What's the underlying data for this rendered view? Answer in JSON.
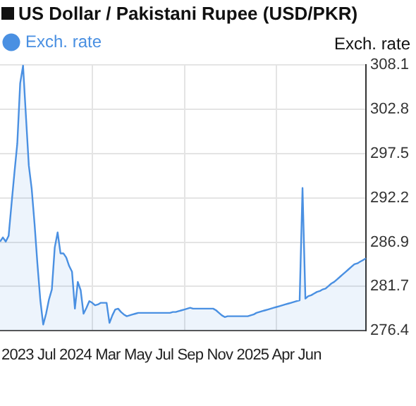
{
  "chart_data": {
    "type": "area",
    "title": "US Dollar / Pakistani Rupee (USD/PKR)",
    "ylabel": "Exch. rate",
    "categories": [
      null,
      null,
      null,
      null,
      null,
      null,
      null,
      null,
      null,
      null,
      null,
      null,
      null,
      null,
      null,
      null,
      null,
      null,
      null,
      null,
      null,
      null,
      null,
      null,
      null,
      null,
      null,
      null,
      null,
      null,
      null,
      null,
      null,
      null,
      null,
      null,
      null,
      null,
      null,
      null,
      null,
      null,
      null,
      null,
      null,
      null,
      null,
      null,
      null,
      null,
      null,
      null,
      null,
      null,
      null,
      null,
      null,
      null,
      null,
      null,
      null,
      null,
      null,
      null,
      null,
      null,
      null,
      null,
      null,
      null,
      null,
      null,
      null,
      null,
      null,
      null,
      null,
      null,
      null,
      null,
      null,
      null,
      null,
      null,
      null,
      null,
      null,
      null,
      null,
      null,
      null,
      null,
      null,
      null,
      null,
      null,
      null,
      null,
      null,
      null,
      null,
      null,
      null,
      null,
      null,
      null,
      null,
      null,
      null,
      null,
      null,
      null,
      null,
      null,
      null,
      null,
      null,
      null,
      null,
      null,
      null,
      null,
      null,
      null,
      null,
      null,
      null,
      null
    ],
    "series": [
      {
        "name": "Exch. rate",
        "color": "#4a90e2",
        "values": [
          287.0,
          287.5,
          287.0,
          287.7,
          291.5,
          295.2,
          298.7,
          305.9,
          308.0,
          302.0,
          296.1,
          293.3,
          289.1,
          284.3,
          280.0,
          277.1,
          278.4,
          280.1,
          281.3,
          286.3,
          288.1,
          285.6,
          285.6,
          285.1,
          284.1,
          283.4,
          279.0,
          282.2,
          281.2,
          278.4,
          279.1,
          279.9,
          279.7,
          279.4,
          279.5,
          279.7,
          279.7,
          279.7,
          277.3,
          278.2,
          278.9,
          279.0,
          278.6,
          278.3,
          278.1,
          278.2,
          278.3,
          278.4,
          278.5,
          278.5,
          278.5,
          278.5,
          278.5,
          278.5,
          278.5,
          278.5,
          278.5,
          278.5,
          278.5,
          278.5,
          278.6,
          278.6,
          278.7,
          278.8,
          278.9,
          279.0,
          279.1,
          279.0,
          279.0,
          279.0,
          279.0,
          279.0,
          279.0,
          279.0,
          279.0,
          278.8,
          278.5,
          278.2,
          278.0,
          278.1,
          278.1,
          278.1,
          278.1,
          278.1,
          278.1,
          278.1,
          278.1,
          278.2,
          278.3,
          278.5,
          278.6,
          278.7,
          278.8,
          278.9,
          279.0,
          279.1,
          279.2,
          279.3,
          279.4,
          279.5,
          279.6,
          279.7,
          279.8,
          279.9,
          280.0,
          293.4,
          280.2,
          280.5,
          280.6,
          280.8,
          281.0,
          281.1,
          281.3,
          281.4,
          281.7,
          282.0,
          282.2,
          282.5,
          282.8,
          283.1,
          283.4,
          283.7,
          284.0,
          284.3,
          284.4,
          284.6,
          284.8,
          285.0
        ]
      }
    ],
    "ylim": [
      276.4,
      308.1
    ],
    "yticks": [
      276.4,
      281.7,
      286.9,
      292.2,
      297.5,
      302.8,
      308.1
    ],
    "annotations": [
      "2023 Jul 2024 Mar May Jul Sep Nov 2025 Apr Jun"
    ],
    "grid": true,
    "legend": "top left",
    "marker": "none",
    "line_style": "solid"
  }
}
